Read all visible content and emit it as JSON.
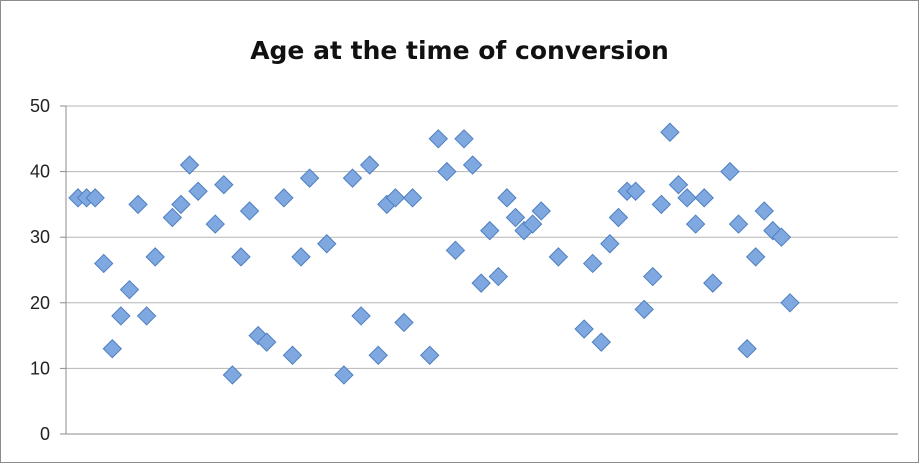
{
  "chart_data": {
    "type": "scatter",
    "title": "Age at the time of conversion",
    "xlabel": "",
    "ylabel": "",
    "ylim": [
      0,
      50
    ],
    "yticks": [
      0,
      10,
      20,
      30,
      40,
      50
    ],
    "grid": true,
    "legend": "none",
    "marker": "diamond",
    "colors": {
      "marker_fill": "#7fa8e0",
      "marker_stroke": "#4f7fc0",
      "grid": "#b5b5b5",
      "axis": "#8c8c8c"
    },
    "x": [
      1,
      2,
      3,
      4,
      5,
      6,
      7,
      8,
      9,
      10,
      11,
      12,
      13,
      14,
      15,
      16,
      17,
      18,
      19,
      20,
      21,
      22,
      23,
      24,
      25,
      26,
      27,
      28,
      29,
      30,
      31,
      32,
      33,
      34,
      35,
      36,
      37,
      38,
      39,
      40,
      41,
      42,
      43,
      44,
      45,
      46,
      47,
      48,
      49,
      50,
      51,
      52,
      53,
      54,
      55,
      56,
      57,
      58,
      59,
      60,
      61,
      62,
      63,
      64,
      65,
      66,
      67,
      68,
      69,
      70,
      71,
      72,
      73,
      74,
      75,
      76,
      77,
      78,
      79,
      80,
      81,
      82,
      83,
      84,
      85,
      86,
      87,
      88,
      89,
      90,
      91,
      92,
      93,
      94,
      95,
      96,
      97
    ],
    "y": [
      36,
      36,
      36,
      26,
      13,
      18,
      22,
      35,
      18,
      27,
      null,
      33,
      35,
      41,
      37,
      null,
      32,
      38,
      9,
      27,
      34,
      15,
      14,
      null,
      36,
      12,
      27,
      39,
      null,
      29,
      null,
      9,
      39,
      18,
      41,
      12,
      35,
      36,
      17,
      36,
      null,
      12,
      45,
      40,
      28,
      45,
      41,
      23,
      31,
      24,
      36,
      33,
      31,
      32,
      34,
      null,
      27,
      null,
      null,
      16,
      26,
      14,
      29,
      33,
      37,
      37,
      19,
      24,
      35,
      46,
      38,
      36,
      32,
      36,
      23,
      null,
      40,
      32,
      13,
      27,
      34,
      31,
      30,
      20,
      null,
      null,
      null,
      null,
      null,
      null,
      null,
      null,
      null,
      null,
      null,
      null,
      null
    ]
  }
}
